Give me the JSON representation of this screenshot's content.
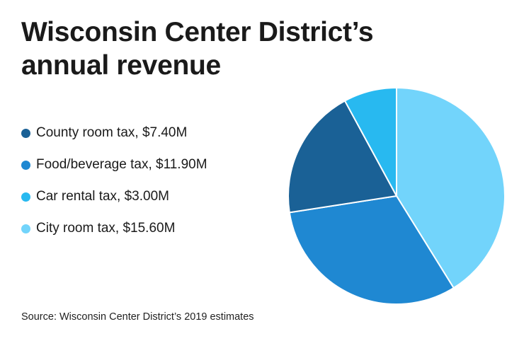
{
  "title_lines": [
    "Wisconsin Center District’s",
    "annual revenue"
  ],
  "source": "Source: Wisconsin Center District’s 2019 estimates",
  "chart_data": {
    "type": "pie",
    "title": "Wisconsin Center District’s annual revenue",
    "unit": "$M",
    "start": "12 o'clock",
    "direction": "clockwise",
    "slices": [
      {
        "name": "City room tax",
        "value": 15.6,
        "color": "#72d4fb"
      },
      {
        "name": "Food/beverage tax",
        "value": 11.9,
        "color": "#1f88d2"
      },
      {
        "name": "County room tax",
        "value": 7.4,
        "color": "#1a6196"
      },
      {
        "name": "Car rental tax",
        "value": 3.0,
        "color": "#28b9f0"
      }
    ],
    "legend": [
      {
        "label": "County room tax, $7.40M",
        "color": "#1a6196"
      },
      {
        "label": "Food/beverage tax, $11.90M",
        "color": "#1f88d2"
      },
      {
        "label": "Car rental tax, $3.00M",
        "color": "#28b9f0"
      },
      {
        "label": "City room tax, $15.60M",
        "color": "#72d4fb"
      }
    ]
  }
}
